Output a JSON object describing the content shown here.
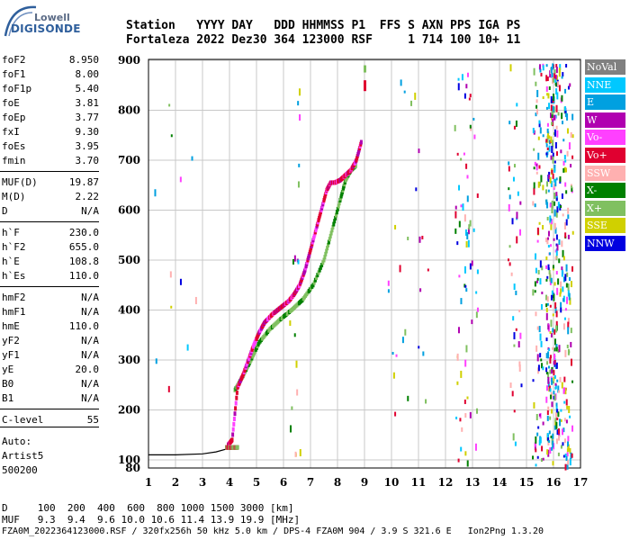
{
  "logo": {
    "company": "Lowell",
    "product": "DIGISONDE"
  },
  "header": {
    "row1": "Station   YYYY DAY   DDD HHMMSS P1  FFS S AXN PPS IGA PS",
    "row2": "Fortaleza 2022 Dez30 364 123000 RSF     1 714 100 10+ 11"
  },
  "params": [
    {
      "name": "foF2",
      "value": "8.950"
    },
    {
      "name": "foF1",
      "value": "8.00"
    },
    {
      "name": "foF1p",
      "value": "5.40"
    },
    {
      "name": "foE",
      "value": "3.81"
    },
    {
      "name": "foEp",
      "value": "3.77"
    },
    {
      "name": "fxI",
      "value": "9.30"
    },
    {
      "name": "foEs",
      "value": "3.95"
    },
    {
      "name": "fmin",
      "value": "3.70"
    },
    {
      "name": "MUF(D)",
      "value": "19.87"
    },
    {
      "name": "M(D)",
      "value": "2.22"
    },
    {
      "name": "D",
      "value": "N/A"
    },
    {
      "name": "h`F",
      "value": "230.0"
    },
    {
      "name": "h`F2",
      "value": "655.0"
    },
    {
      "name": "h`E",
      "value": "108.8"
    },
    {
      "name": "h`Es",
      "value": "110.0"
    },
    {
      "name": "hmF2",
      "value": "N/A"
    },
    {
      "name": "hmF1",
      "value": "N/A"
    },
    {
      "name": "hmE",
      "value": "110.0"
    },
    {
      "name": "yF2",
      "value": "N/A"
    },
    {
      "name": "yF1",
      "value": "N/A"
    },
    {
      "name": "yE",
      "value": "20.0"
    },
    {
      "name": "B0",
      "value": "N/A"
    },
    {
      "name": "B1",
      "value": "N/A"
    },
    {
      "name": "C-level",
      "value": "55"
    }
  ],
  "autoscaling": {
    "label": "Auto:",
    "software": "Artist5",
    "version": "500200"
  },
  "legend": [
    {
      "label": "NoVal",
      "color": "#808080"
    },
    {
      "label": "NNE",
      "color": "#00c8ff"
    },
    {
      "label": "E",
      "color": "#00a0e0"
    },
    {
      "label": "W",
      "color": "#b000b0"
    },
    {
      "label": "Vo-",
      "color": "#ff40ff"
    },
    {
      "label": "Vo+",
      "color": "#e00030"
    },
    {
      "label": "SSW",
      "color": "#ffb0b0"
    },
    {
      "label": "X-",
      "color": "#008000"
    },
    {
      "label": "X+",
      "color": "#80c060"
    },
    {
      "label": "SSE",
      "color": "#d0d000"
    },
    {
      "label": "NNW",
      "color": "#0000e0"
    }
  ],
  "footer": {
    "d_row": "D     100  200  400  600  800 1000 1500 3000 [km]",
    "muf_row": "MUF   9.3  9.4  9.6 10.0 10.6 11.4 13.9 19.9 [MHz]",
    "info_row": "FZA0M_2022364123000.RSF / 320fx256h 50 kHz 5.0 km / DPS-4 FZA0M 904 / 3.9 S 321.6 E   Ion2Png 1.3.20"
  },
  "chart_data": {
    "type": "scatter",
    "x_ticks": [
      "1",
      "2",
      "3",
      "4",
      "5",
      "6",
      "7",
      "8",
      "9",
      "10",
      "11",
      "12",
      "13",
      "14",
      "15",
      "16",
      "17"
    ],
    "y_ticks": [
      "80",
      "100",
      "200",
      "300",
      "400",
      "500",
      "600",
      "700",
      "800",
      "900"
    ],
    "xlim": [
      1,
      17
    ],
    "ylim": [
      80,
      900
    ],
    "grid": true,
    "profile_curve": {
      "x": [
        1.0,
        2.0,
        3.0,
        3.5,
        3.9,
        4.05
      ],
      "y": [
        110,
        110,
        112,
        116,
        122,
        128
      ]
    },
    "o_trace": {
      "x": [
        3.95,
        4.1,
        4.3,
        4.5,
        4.7,
        4.9,
        5.1,
        5.3,
        5.6,
        5.9,
        6.2,
        6.4,
        6.6,
        6.8,
        7.0,
        7.2,
        7.4,
        7.6,
        7.75,
        7.9,
        8.1,
        8.3,
        8.5,
        8.7,
        8.9
      ],
      "y": [
        130,
        140,
        245,
        270,
        300,
        330,
        355,
        375,
        392,
        405,
        418,
        432,
        450,
        480,
        520,
        560,
        600,
        640,
        655,
        655,
        660,
        670,
        680,
        700,
        740
      ]
    },
    "x_trace": {
      "x": [
        4.2,
        4.5,
        4.8,
        5.1,
        5.5,
        5.9,
        6.3,
        6.7,
        7.1,
        7.5,
        7.8,
        8.1,
        8.3,
        8.5,
        8.7
      ],
      "y": [
        240,
        268,
        300,
        335,
        362,
        382,
        400,
        420,
        450,
        500,
        560,
        620,
        660,
        680,
        690
      ]
    },
    "es_trace": {
      "x": [
        3.9,
        4.0,
        4.1,
        4.2,
        4.3
      ],
      "y": [
        125,
        125,
        125,
        125,
        125
      ]
    }
  }
}
